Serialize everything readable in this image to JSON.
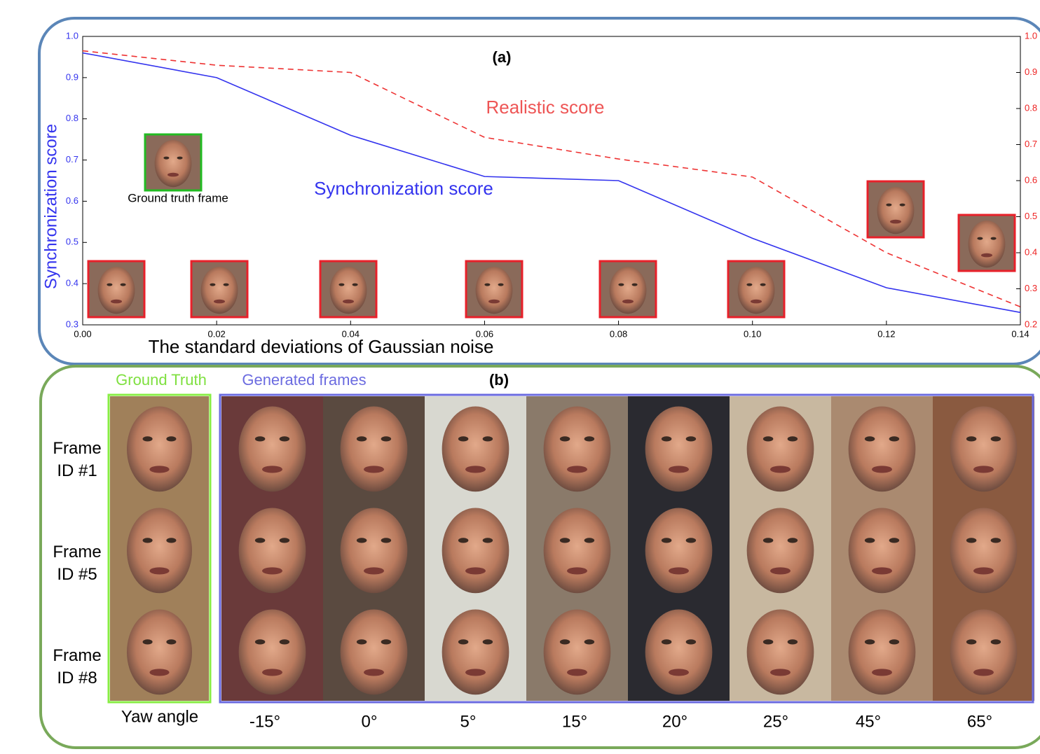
{
  "chart_data": {
    "type": "line",
    "title": "(a)",
    "xlabel": "The standard deviations of Gaussian noise",
    "ylabel": "Synchronization score",
    "annotation": "Ground truth frame",
    "x": [
      0.0,
      0.02,
      0.04,
      0.06,
      0.08,
      0.1,
      0.12,
      0.14
    ],
    "series": [
      {
        "name": "Synchronization score",
        "color": "#3333ee",
        "style": "solid",
        "values": [
          0.96,
          0.9,
          0.76,
          0.66,
          0.65,
          0.51,
          0.39,
          0.33
        ]
      },
      {
        "name": "Realistic score",
        "color": "#ee3333",
        "style": "dashed",
        "axis": "y2",
        "values": [
          0.96,
          0.92,
          0.9,
          0.72,
          0.66,
          0.61,
          0.4,
          0.25
        ]
      }
    ],
    "xlim": [
      0.0,
      0.14
    ],
    "xticks": [
      {
        "value": 0.0,
        "label": "0.00"
      },
      {
        "value": 0.02,
        "label": "0.02"
      },
      {
        "value": 0.04,
        "label": "0.04"
      },
      {
        "value": 0.06,
        "label": "0.06"
      },
      {
        "value": 0.08,
        "label": "0.08"
      },
      {
        "value": 0.1,
        "label": "0.10"
      },
      {
        "value": 0.12,
        "label": "0.12"
      },
      {
        "value": 0.14,
        "label": "0.14"
      }
    ],
    "ylim": [
      0.3,
      1.0
    ],
    "yticks": [
      0.3,
      0.4,
      0.5,
      0.6,
      0.7,
      0.8,
      0.9,
      {
        "value": 1.0,
        "label": "1.0"
      }
    ],
    "y2lim": [
      0.2,
      1.0
    ],
    "y2ticks": [
      0.2,
      0.3,
      0.4,
      0.5,
      0.6,
      0.7,
      0.8,
      0.9,
      {
        "value": 1.0,
        "label": "1.0"
      }
    ]
  },
  "panel_b": {
    "title": "(b)",
    "ground_truth": "Ground Truth",
    "generated": "Generated frames",
    "rows": [
      "Frame\nID #1",
      "Frame\nID #5",
      "Frame\nID #8"
    ],
    "yaw_label": "Yaw angle",
    "angles": [
      "-15°",
      "0°",
      "5°",
      "15°",
      "20°",
      "25°",
      "45°",
      "65°"
    ]
  }
}
